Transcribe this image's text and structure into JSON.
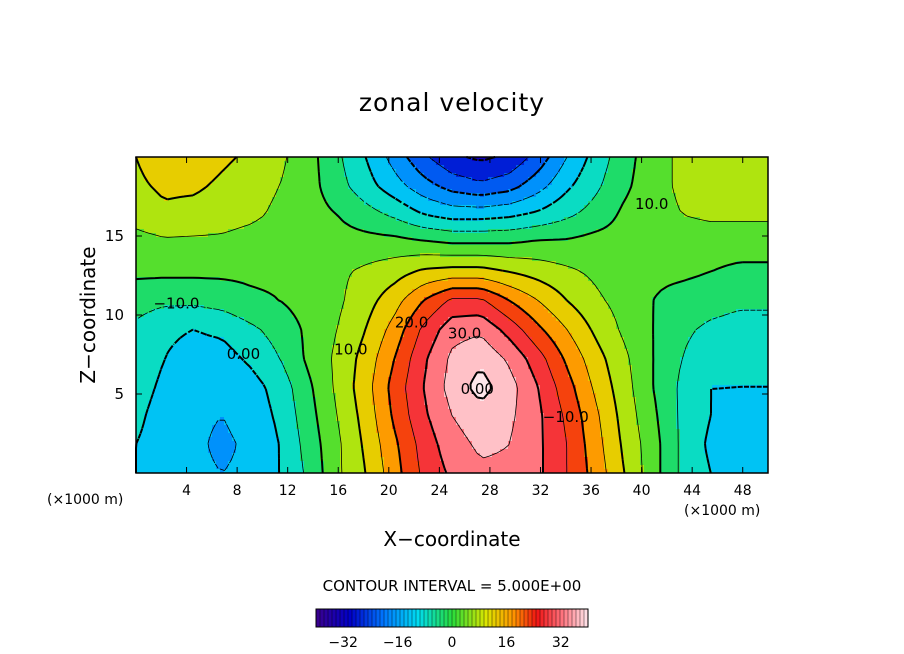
{
  "chart_data": {
    "type": "heatmap",
    "title": "zonal velocity",
    "xlabel": "X−coordinate",
    "ylabel": "Z−coordinate",
    "x_unit_left": "(×1000 m)",
    "x_unit_right": "(×1000 m)",
    "xlim": [
      0,
      50
    ],
    "ylim": [
      0,
      20
    ],
    "x_ticks": [
      4,
      8,
      12,
      16,
      20,
      24,
      28,
      32,
      36,
      40,
      44,
      48
    ],
    "y_ticks": [
      5,
      10,
      15
    ],
    "contour_interval_label": "CONTOUR INTERVAL = 5.000E+00",
    "contour_interval": 5.0,
    "colorbar": {
      "range": [
        -40,
        40
      ],
      "ticks": [
        -32,
        -16,
        0,
        16,
        32
      ]
    },
    "contour_labels": [
      {
        "text": "−10.0",
        "x": 3.2,
        "y": 10.7
      },
      {
        "text": "0.00",
        "x": 8.5,
        "y": 7.5
      },
      {
        "text": "10.0",
        "x": 17.0,
        "y": 7.8
      },
      {
        "text": "20.0",
        "x": 21.8,
        "y": 9.5
      },
      {
        "text": "30.0",
        "x": 26.0,
        "y": 8.8
      },
      {
        "text": "0.00",
        "x": 27.0,
        "y": 5.3
      },
      {
        "text": "−10.0",
        "x": 34.0,
        "y": 3.5
      },
      {
        "text": "10.0",
        "x": 40.8,
        "y": 17.0
      }
    ],
    "grid_z": [
      [
        -10,
        -12,
        -14,
        -15,
        -14,
        -10,
        -4,
        4,
        10,
        18,
        26,
        31,
        34,
        34,
        31,
        25,
        18,
        10,
        2,
        -6,
        -10,
        -12,
        -13
      ],
      [
        -10,
        -12,
        -14,
        -16,
        -14,
        -10,
        -3,
        4,
        11,
        19,
        27,
        33,
        36,
        35,
        31,
        25,
        17,
        9,
        2,
        -6,
        -11,
        -12,
        -12
      ],
      [
        -9,
        -12,
        -14,
        -15,
        -13,
        -9,
        -2,
        5,
        12,
        21,
        29,
        35,
        38,
        36,
        31,
        24,
        16,
        8,
        1,
        -6,
        -10,
        -11,
        -11
      ],
      [
        -8,
        -11,
        -13,
        -14,
        -12,
        -8,
        -1,
        6,
        13,
        22,
        30,
        37,
        42,
        37,
        30,
        22,
        14,
        7,
        0,
        -6,
        -10,
        -10,
        -10
      ],
      [
        -7,
        -10,
        -12,
        -12,
        -9,
        -5,
        1,
        6,
        12,
        20,
        29,
        36,
        39,
        34,
        27,
        19,
        12,
        6,
        0,
        -5,
        -8,
        -9,
        -9
      ],
      [
        -6,
        -9,
        -10,
        -9,
        -6,
        -3,
        1,
        5,
        10,
        17,
        26,
        33,
        34,
        28,
        21,
        15,
        9,
        4,
        0,
        -4,
        -6,
        -7,
        -7
      ],
      [
        -3,
        -4,
        -4,
        -3,
        -1,
        0,
        2,
        4,
        8,
        13,
        20,
        26,
        26,
        20,
        15,
        10,
        6,
        3,
        0,
        -2,
        -3,
        -4,
        -4
      ],
      [
        1,
        1,
        1,
        1,
        1,
        1,
        2,
        4,
        6,
        8,
        11,
        12,
        12,
        10,
        8,
        6,
        4,
        2,
        1,
        1,
        0,
        -1,
        -1
      ],
      [
        3,
        4,
        4,
        4,
        3,
        2,
        1,
        2,
        2,
        2,
        1,
        0,
        0,
        0,
        1,
        1,
        2,
        2,
        2,
        2,
        2,
        2,
        2
      ],
      [
        7,
        9,
        8,
        7,
        6,
        4,
        2,
        0,
        -3,
        -6,
        -10,
        -12,
        -12,
        -11,
        -9,
        -6,
        -3,
        1,
        3,
        5,
        6,
        6,
        6
      ],
      [
        9,
        11,
        11,
        9,
        7,
        5,
        2,
        -3,
        -8,
        -13,
        -18,
        -22,
        -24,
        -22,
        -17,
        -11,
        -6,
        -1,
        3,
        6,
        7,
        7,
        7
      ],
      [
        10,
        13,
        13,
        11,
        9,
        6,
        2,
        -4,
        -10,
        -17,
        -24,
        -29,
        -31,
        -29,
        -23,
        -15,
        -8,
        -2,
        3,
        6,
        8,
        8,
        8
      ]
    ]
  }
}
